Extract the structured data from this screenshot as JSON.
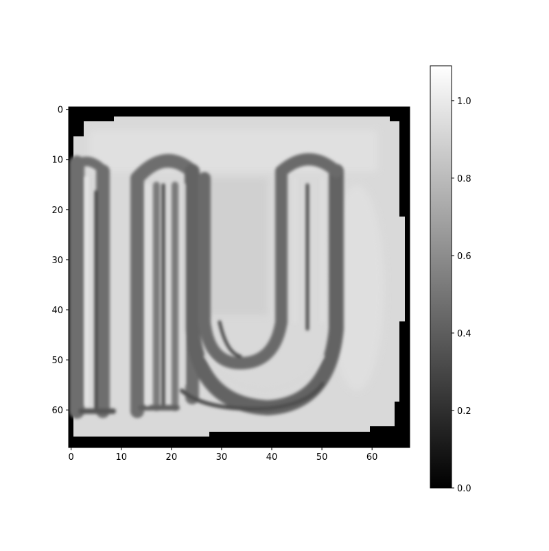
{
  "chart_data": {
    "type": "heatmap",
    "colormap": "gray",
    "grid": false,
    "x_ticks": [
      0,
      10,
      20,
      30,
      40,
      50,
      60
    ],
    "y_ticks": [
      0,
      10,
      20,
      30,
      40,
      50,
      60
    ],
    "x_range": [
      -0.5,
      67.5
    ],
    "y_range": [
      -0.5,
      67.5
    ],
    "colorbar": {
      "range": [
        0.0,
        1.09
      ],
      "ticks": [
        0.0,
        0.2,
        0.4,
        0.6,
        0.8,
        1.0
      ],
      "tick_labels": [
        "0.0",
        "0.2",
        "0.4",
        "0.6",
        "0.8",
        "1.0"
      ]
    },
    "image_content": {
      "description_values": {
        "background_level": 0.9,
        "stroke_outer_level": 0.5,
        "stroke_inner_level": 0.35,
        "masked_border_level": 0.0
      },
      "shape": "letters m and u, embossed grey strokes on light background",
      "size": [
        68,
        68
      ]
    }
  }
}
